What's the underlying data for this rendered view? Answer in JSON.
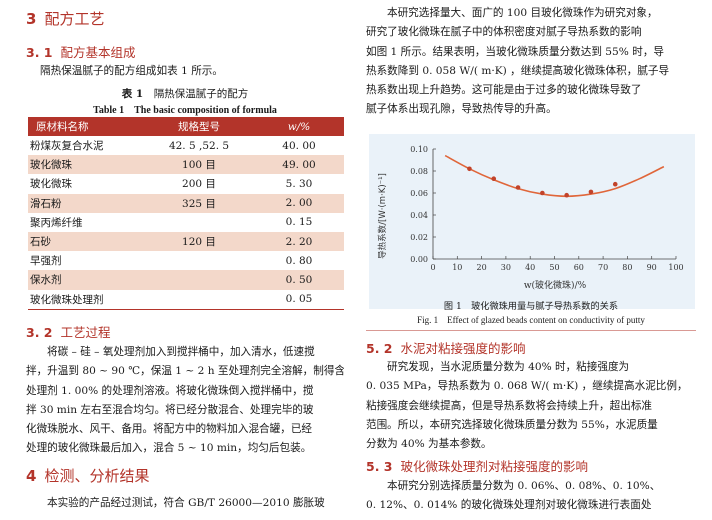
{
  "left": {
    "sec3_num": "3",
    "sec3_title": "配方工艺",
    "sec31_num": "3. 1",
    "sec31_title": "配方基本组成",
    "sec31_text": "隔热保温腻子的配方组成如表 1 所示。",
    "table_caption_cn_label": "表 1",
    "table_caption_cn_text": "隔热保温腻子的配方",
    "table_caption_en_label": "Table 1",
    "table_caption_en_text": "The basic composition of formula",
    "table": {
      "headers": [
        "原材料名称",
        "规格型号",
        "w/%"
      ],
      "rows": [
        {
          "name": "粉煤灰复合水泥",
          "spec": "42. 5 ,52. 5",
          "w": "40. 00",
          "shade": false
        },
        {
          "name": "玻化微珠",
          "spec": "100 目",
          "w": "49. 00",
          "shade": true
        },
        {
          "name": "玻化微珠",
          "spec": "200 目",
          "w": "5. 30",
          "shade": false
        },
        {
          "name": "滑石粉",
          "spec": "325 目",
          "w": "2. 00",
          "shade": true
        },
        {
          "name": "聚丙烯纤维",
          "spec": "",
          "w": "0. 15",
          "shade": false
        },
        {
          "name": "石砂",
          "spec": "120 目",
          "w": "2. 20",
          "shade": true
        },
        {
          "name": "早强剂",
          "spec": "",
          "w": "0. 80",
          "shade": false
        },
        {
          "name": "保水剂",
          "spec": "",
          "w": "0. 50",
          "shade": true
        },
        {
          "name": "玻化微珠处理剂",
          "spec": "",
          "w": "0. 05",
          "shade": false
        }
      ]
    },
    "sec32_num": "3. 2",
    "sec32_title": "工艺过程",
    "sec32_lines": [
      "将碳 – 硅 – 氧处理剂加入到搅拌桶中，加入清水，低速搅",
      "拌，升温到 80 ~ 90 ℃，保温 1 ~ 2 h 至处理剂完全溶解，制得含",
      "处理剂 1. 00% 的处理剂溶液。将玻化微珠倒入搅拌桶中，搅",
      "拌 30 min 左右至混合均匀。将已经分散混合、处理完毕的玻",
      "化微珠脱水、风干、备用。将配方中的物料加入混合罐，已经",
      "处理的玻化微珠最后加入，混合 5 ~ 10 min，均匀后包装。"
    ],
    "sec4_num": "4",
    "sec4_title": "检测、分析结果",
    "sec4_line": "本实验的产品经过测试，符合 GB/T 26000—2010 膨胀玻"
  },
  "right": {
    "intro_lines": [
      "本研究选择量大、面广的 100 目玻化微珠作为研究对象，",
      "研究了玻化微珠在腻子中的体积密度对腻子导热系数的影响",
      "如图 1 所示。结果表明，当玻化微珠质量分数达到 55% 时，导",
      "热系数降到 0. 058 W/( m·K) ，继续提高玻化微珠体积，腻子导",
      "热系数出现上升趋势。这可能是由于过多的玻化微珠导致了",
      "腻子体系出现孔隙，导致热传导的升高。"
    ],
    "figure_caption_cn": "图 1　玻化微珠用量与腻子导热系数的关系",
    "figure_caption_en": "Fig. 1　Effect of glazed beads content on conductivity of putty",
    "sec52_num": "5. 2",
    "sec52_title": "水泥对粘接强度的影响",
    "sec52_lines": [
      "研究发现，当水泥质量分数为 40% 时，粘接强度为",
      "0. 035 MPa，导热系数为 0. 068 W/( m·K) ，继续提高水泥比例，",
      "粘接强度会继续提高，但是导热系数将会持续上升，超出标准",
      "范围。所以，本研究选择玻化微珠质量分数为 55%，水泥质量",
      "分数为 40% 为基本参数。"
    ],
    "sec53_num": "5. 3",
    "sec53_title": "玻化微珠处理剂对粘接强度的影响",
    "sec53_lines": [
      "本研究分别选择质量分数为 0. 06%、0. 08%、0. 10%、",
      "0. 12%、0. 014% 的玻化微珠处理剂对玻化微珠进行表面处"
    ]
  },
  "chart_data": {
    "type": "line",
    "xlabel": "w(玻化微珠)/%",
    "ylabel": "导热系数/[W·(m·K)⁻¹]",
    "xlim": [
      0,
      100
    ],
    "ylim": [
      0,
      0.1
    ],
    "xticks": [
      0,
      10,
      20,
      30,
      40,
      50,
      60,
      70,
      80,
      90,
      100
    ],
    "yticks": [
      0.0,
      0.02,
      0.04,
      0.06,
      0.08,
      0.1
    ],
    "xtick_labels": [
      "0",
      "10",
      "20",
      "30",
      "40",
      "50",
      "60",
      "70",
      "80",
      "90",
      "100"
    ],
    "ytick_labels": [
      "0.00",
      "0.02",
      "0.04",
      "0.06",
      "0.08",
      "0.10"
    ],
    "grid": false,
    "line_color": "#e0663a",
    "marker_color": "#c2432a",
    "curve": {
      "x": [
        5,
        15,
        25,
        35,
        45,
        55,
        65,
        75,
        85,
        95
      ],
      "y": [
        0.094,
        0.082,
        0.072,
        0.064,
        0.059,
        0.057,
        0.059,
        0.064,
        0.073,
        0.084
      ]
    },
    "points": {
      "x": [
        15,
        25,
        35,
        45,
        55,
        65,
        75
      ],
      "y": [
        0.082,
        0.073,
        0.065,
        0.06,
        0.058,
        0.061,
        0.068
      ]
    }
  }
}
